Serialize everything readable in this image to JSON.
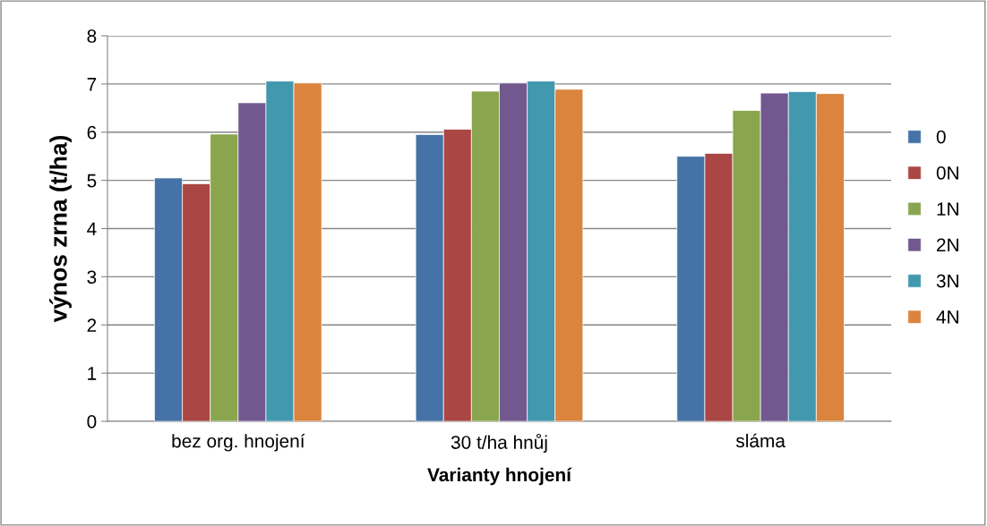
{
  "chart_data": {
    "type": "bar",
    "xlabel": "Varianty hnojení",
    "ylabel": "výnos zrna (t/ha)",
    "categories": [
      "bez org. hnojení",
      "30 t/ha hnůj",
      "sláma"
    ],
    "series": [
      {
        "name": "0",
        "color": "#4572a7",
        "values": [
          5.05,
          5.95,
          5.5
        ]
      },
      {
        "name": "0N",
        "color": "#aa4643",
        "values": [
          4.93,
          6.06,
          5.56
        ]
      },
      {
        "name": "1N",
        "color": "#89a54e",
        "values": [
          5.96,
          6.85,
          6.45
        ]
      },
      {
        "name": "2N",
        "color": "#71588f",
        "values": [
          6.61,
          7.02,
          6.81
        ]
      },
      {
        "name": "3N",
        "color": "#4198af",
        "values": [
          7.06,
          7.06,
          6.84
        ]
      },
      {
        "name": "4N",
        "color": "#db843d",
        "values": [
          7.02,
          6.89,
          6.8
        ]
      }
    ],
    "ylim": [
      0,
      8
    ],
    "yticks": [
      0,
      1,
      2,
      3,
      4,
      5,
      6,
      7,
      8
    ],
    "grid": "y",
    "legend": "right"
  }
}
